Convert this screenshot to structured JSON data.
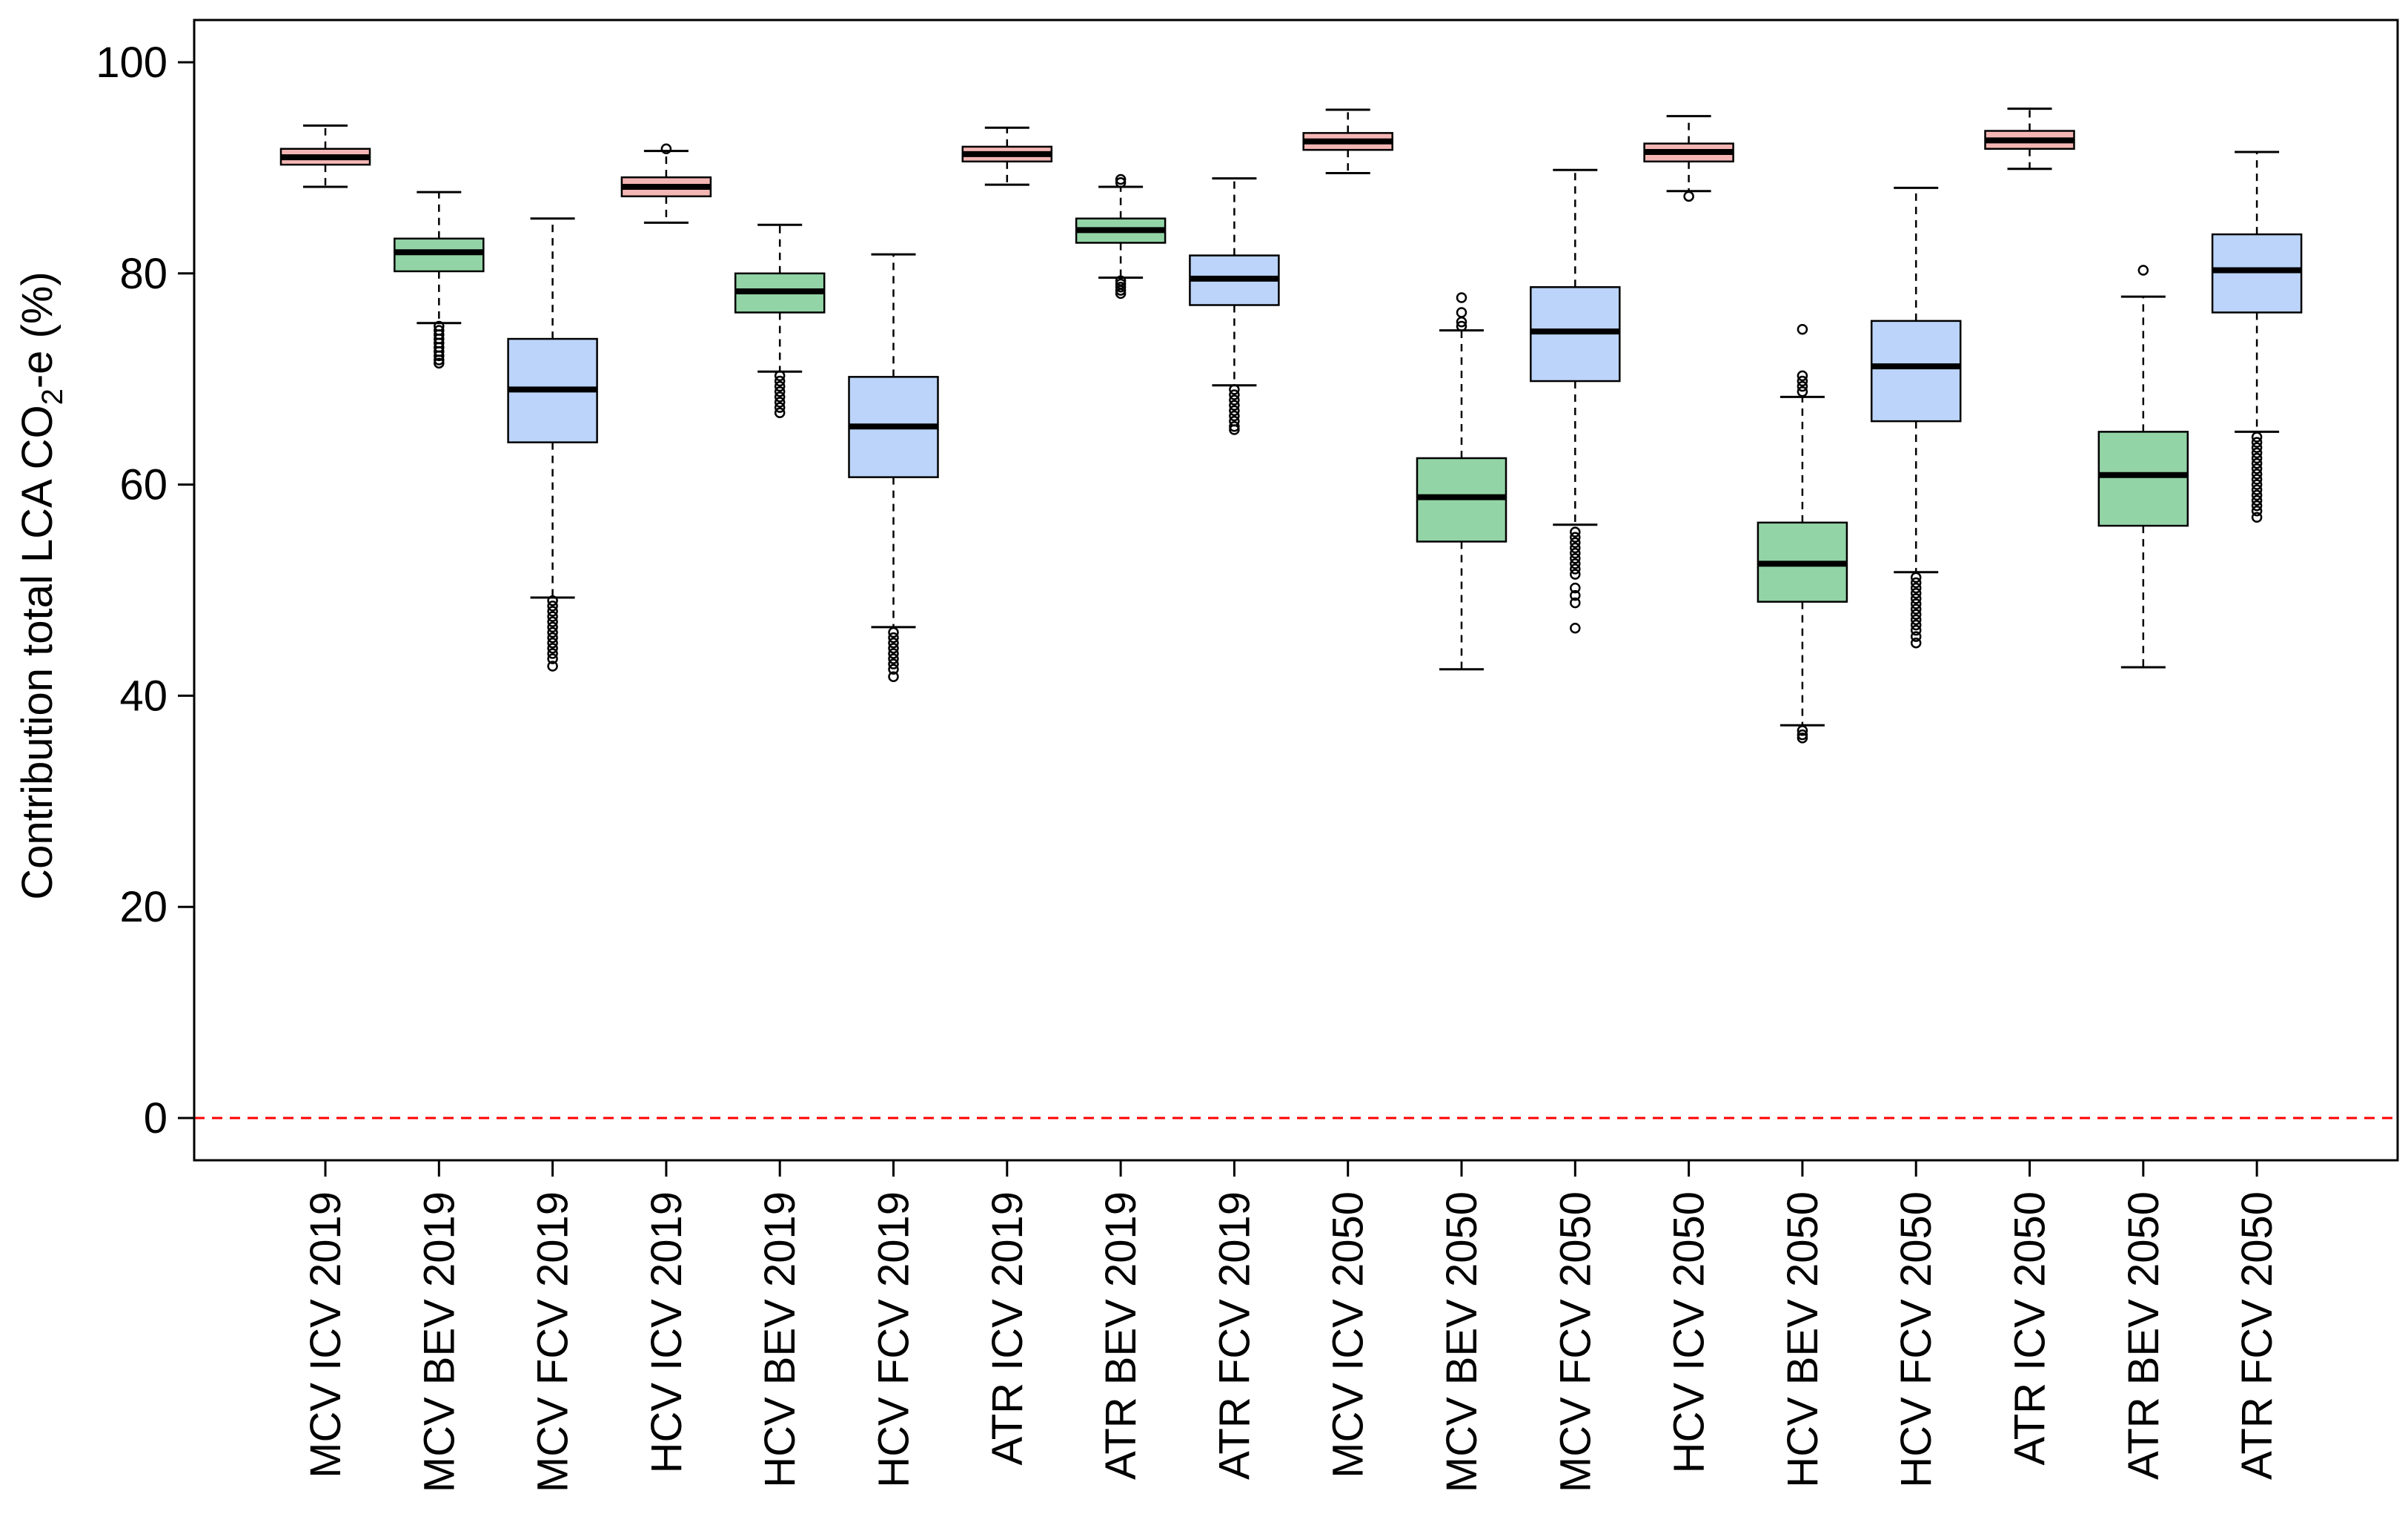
{
  "chart_data": {
    "type": "box",
    "ylabel": "Contribution total LCA CO₂-e (%)",
    "ylabel_parts": {
      "prefix": "Contribution total LCA CO",
      "subscript": "2",
      "suffix": "-e (%)"
    },
    "ylim": [
      -4,
      104
    ],
    "yticks": [
      0,
      20,
      40,
      60,
      80,
      100
    ],
    "ytick_labels": [
      "0",
      "20",
      "40",
      "60",
      "80",
      "100"
    ],
    "grid": false,
    "legend": "none",
    "reference_line": {
      "y": 0,
      "color": "#ff0000",
      "style": "dashed"
    },
    "colors": {
      "ICV": "#f4b6b4",
      "BEV": "#93d4a6",
      "FCV": "#bcd4f9"
    },
    "categories": [
      "MCV ICV 2019",
      "MCV BEV 2019",
      "MCV FCV 2019",
      "HCV ICV 2019",
      "HCV BEV 2019",
      "HCV FCV 2019",
      "ATR ICV 2019",
      "ATR BEV 2019",
      "ATR FCV 2019",
      "MCV ICV 2050",
      "MCV BEV 2050",
      "MCV FCV 2050",
      "HCV ICV 2050",
      "HCV BEV 2050",
      "HCV FCV 2050",
      "ATR ICV 2050",
      "ATR BEV 2050",
      "ATR FCV 2050"
    ],
    "boxes": [
      {
        "category": "MCV ICV 2019",
        "group": "ICV",
        "whisker_low": 88.2,
        "q1": 90.3,
        "median": 91.0,
        "q3": 91.8,
        "whisker_high": 94.0,
        "outliers": []
      },
      {
        "category": "MCV BEV 2019",
        "group": "BEV",
        "whisker_low": 75.3,
        "q1": 80.2,
        "median": 82.0,
        "q3": 83.3,
        "whisker_high": 87.7,
        "outliers": [
          75.0,
          74.6,
          74.2,
          73.8,
          73.4,
          73.0,
          72.6,
          72.2,
          71.8,
          71.5
        ]
      },
      {
        "category": "MCV FCV 2019",
        "group": "FCV",
        "whisker_low": 49.3,
        "q1": 64.0,
        "median": 69.0,
        "q3": 73.8,
        "whisker_high": 85.2,
        "outliers": [
          49.0,
          48.5,
          48.0,
          47.5,
          47.0,
          46.5,
          46.0,
          45.5,
          45.0,
          44.5,
          44.0,
          43.5,
          42.8
        ]
      },
      {
        "category": "HCV ICV 2019",
        "group": "ICV",
        "whisker_low": 84.8,
        "q1": 87.3,
        "median": 88.2,
        "q3": 89.1,
        "whisker_high": 91.6,
        "outliers": [
          91.8
        ]
      },
      {
        "category": "HCV BEV 2019",
        "group": "BEV",
        "whisker_low": 70.7,
        "q1": 76.3,
        "median": 78.3,
        "q3": 80.0,
        "whisker_high": 84.6,
        "outliers": [
          70.3,
          69.8,
          69.3,
          68.8,
          68.3,
          67.8,
          67.3,
          66.8
        ]
      },
      {
        "category": "HCV FCV 2019",
        "group": "FCV",
        "whisker_low": 46.5,
        "q1": 60.7,
        "median": 65.5,
        "q3": 70.2,
        "whisker_high": 81.8,
        "outliers": [
          46.0,
          45.5,
          45.0,
          44.5,
          44.0,
          43.5,
          43.0,
          42.5,
          41.8
        ]
      },
      {
        "category": "ATR ICV 2019",
        "group": "ICV",
        "whisker_low": 88.4,
        "q1": 90.6,
        "median": 91.3,
        "q3": 92.0,
        "whisker_high": 93.8,
        "outliers": []
      },
      {
        "category": "ATR BEV 2019",
        "group": "BEV",
        "whisker_low": 79.6,
        "q1": 82.9,
        "median": 84.1,
        "q3": 85.2,
        "whisker_high": 88.2,
        "outliers": [
          88.6,
          88.9,
          79.3,
          79.0,
          78.7,
          78.4,
          78.1
        ]
      },
      {
        "category": "ATR FCV 2019",
        "group": "FCV",
        "whisker_low": 69.4,
        "q1": 77.0,
        "median": 79.5,
        "q3": 81.7,
        "whisker_high": 89.0,
        "outliers": [
          69.0,
          68.5,
          68.0,
          67.5,
          67.0,
          66.5,
          66.0,
          65.5,
          65.2
        ]
      },
      {
        "category": "MCV ICV 2050",
        "group": "ICV",
        "whisker_low": 89.5,
        "q1": 91.7,
        "median": 92.5,
        "q3": 93.3,
        "whisker_high": 95.5,
        "outliers": []
      },
      {
        "category": "MCV BEV 2050",
        "group": "BEV",
        "whisker_low": 42.5,
        "q1": 54.6,
        "median": 58.8,
        "q3": 62.5,
        "whisker_high": 74.6,
        "outliers": [
          75.0,
          75.4,
          76.3,
          77.7
        ]
      },
      {
        "category": "MCV FCV 2050",
        "group": "FCV",
        "whisker_low": 56.2,
        "q1": 69.8,
        "median": 74.5,
        "q3": 78.7,
        "whisker_high": 89.8,
        "outliers": [
          55.5,
          55.0,
          54.5,
          54.0,
          53.5,
          53.0,
          52.5,
          52.0,
          51.5,
          50.2,
          49.5,
          48.8,
          46.4
        ]
      },
      {
        "category": "HCV ICV 2050",
        "group": "ICV",
        "whisker_low": 87.8,
        "q1": 90.6,
        "median": 91.5,
        "q3": 92.3,
        "whisker_high": 94.9,
        "outliers": [
          87.3
        ]
      },
      {
        "category": "HCV BEV 2050",
        "group": "BEV",
        "whisker_low": 37.2,
        "q1": 48.9,
        "median": 52.5,
        "q3": 56.4,
        "whisker_high": 68.3,
        "outliers": [
          68.8,
          69.3,
          69.8,
          70.3,
          74.7,
          36.7,
          36.3,
          36.0
        ]
      },
      {
        "category": "HCV FCV 2050",
        "group": "FCV",
        "whisker_low": 51.7,
        "q1": 66.0,
        "median": 71.2,
        "q3": 75.5,
        "whisker_high": 88.1,
        "outliers": [
          51.2,
          50.7,
          50.2,
          49.7,
          49.2,
          48.7,
          48.2,
          47.7,
          47.2,
          46.7,
          46.2,
          45.6,
          45.0
        ]
      },
      {
        "category": "ATR ICV 2050",
        "group": "ICV",
        "whisker_low": 89.9,
        "q1": 91.8,
        "median": 92.6,
        "q3": 93.5,
        "whisker_high": 95.6,
        "outliers": []
      },
      {
        "category": "ATR BEV 2050",
        "group": "BEV",
        "whisker_low": 42.7,
        "q1": 56.1,
        "median": 60.9,
        "q3": 65.0,
        "whisker_high": 77.8,
        "outliers": [
          80.3
        ]
      },
      {
        "category": "ATR FCV 2050",
        "group": "FCV",
        "whisker_low": 65.0,
        "q1": 76.3,
        "median": 80.3,
        "q3": 83.7,
        "whisker_high": 91.5,
        "outliers": [
          64.5,
          64.0,
          63.5,
          63.0,
          62.5,
          62.0,
          61.5,
          61.0,
          60.5,
          60.0,
          59.5,
          59.0,
          58.5,
          58.0,
          57.5,
          56.9
        ]
      }
    ]
  }
}
